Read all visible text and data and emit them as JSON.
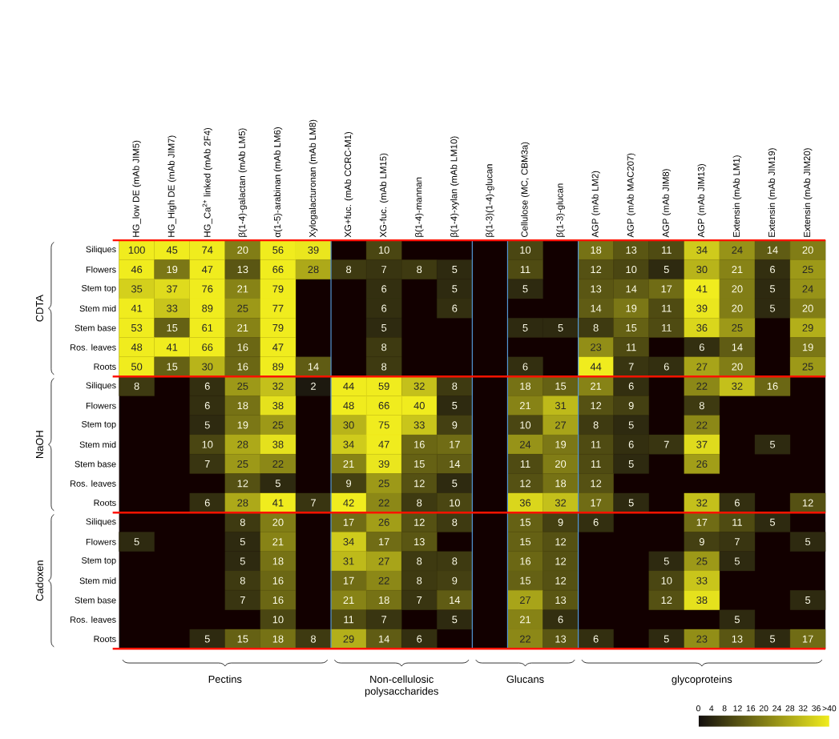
{
  "chart_data": {
    "type": "heatmap",
    "categories": [
      "HG_low DE (mAb JIM5)",
      "HG_High DE (mAb JIM7)",
      "HG_Ca$^{2+}$ linked (mAb 2F4)",
      "β(1-4)-galactan (mAb LM5)",
      "α(1-5)-arabinan (mAb LM6)",
      "Xylogalacturonan (mAb LM8)",
      "XG+fuc. (mAb CCRC-M1)",
      "XG-fuc. (mAb LM15)",
      "β(1-4)-mannan",
      "β(1-4)-xylan (mAb LM10)",
      "β(1-3)(1-4)-glucan",
      "Cellulose (MC, CBM3a)",
      "β(1-3)-glucan",
      "AGP (mAb LM2)",
      "AGP (mAb MAC207)",
      "AGP (mAb JIM8)",
      "AGP (mAb JIM13)",
      "Extensin (mAb LM1)",
      "Extensin (mAb JIM19)",
      "Extensin (mAb JIM20)"
    ],
    "y_categories": [
      "Siliques",
      "Flowers",
      "Stem top",
      "Stem mid",
      "Stem base",
      "Ros. leaves",
      "Roots",
      "Siliques",
      "Flowers",
      "Stem top",
      "Stem mid",
      "Stem base",
      "Ros. leaves",
      "Roots",
      "Siliques",
      "Flowers",
      "Stem top",
      "Stem mid",
      "Stem base",
      "Ros. leaves",
      "Roots"
    ],
    "cells": [
      [
        100,
        45,
        74,
        20,
        56,
        39,
        null,
        10,
        null,
        null,
        null,
        10,
        null,
        18,
        13,
        11,
        34,
        24,
        14,
        20
      ],
      [
        46,
        19,
        47,
        13,
        66,
        28,
        8,
        7,
        8,
        5,
        null,
        11,
        null,
        12,
        10,
        5,
        30,
        21,
        6,
        25
      ],
      [
        35,
        37,
        76,
        21,
        79,
        null,
        null,
        6,
        null,
        5,
        null,
        5,
        null,
        13,
        14,
        17,
        41,
        20,
        5,
        24
      ],
      [
        41,
        33,
        89,
        25,
        77,
        null,
        null,
        6,
        null,
        6,
        null,
        null,
        null,
        14,
        19,
        11,
        39,
        20,
        5,
        20
      ],
      [
        53,
        15,
        61,
        21,
        79,
        null,
        null,
        5,
        null,
        null,
        null,
        5,
        5,
        8,
        15,
        11,
        36,
        25,
        null,
        29
      ],
      [
        48,
        41,
        66,
        16,
        47,
        null,
        null,
        8,
        null,
        null,
        null,
        null,
        null,
        23,
        11,
        null,
        6,
        14,
        null,
        19
      ],
      [
        50,
        15,
        30,
        16,
        89,
        14,
        null,
        8,
        null,
        null,
        null,
        6,
        null,
        44,
        7,
        6,
        27,
        20,
        null,
        25
      ],
      [
        8,
        null,
        6,
        25,
        32,
        2,
        44,
        59,
        32,
        8,
        null,
        18,
        15,
        21,
        6,
        null,
        22,
        32,
        16,
        null
      ],
      [
        null,
        null,
        6,
        18,
        38,
        null,
        48,
        66,
        40,
        5,
        null,
        21,
        31,
        12,
        9,
        null,
        8,
        null,
        null,
        null
      ],
      [
        null,
        null,
        5,
        19,
        25,
        null,
        30,
        75,
        33,
        9,
        null,
        10,
        27,
        8,
        5,
        null,
        22,
        null,
        null,
        null
      ],
      [
        null,
        null,
        10,
        28,
        38,
        null,
        34,
        47,
        16,
        17,
        null,
        24,
        19,
        11,
        6,
        7,
        37,
        null,
        5,
        null
      ],
      [
        null,
        null,
        7,
        25,
        22,
        null,
        21,
        39,
        15,
        14,
        null,
        11,
        20,
        11,
        5,
        null,
        26,
        null,
        null,
        null
      ],
      [
        null,
        null,
        null,
        12,
        5,
        null,
        9,
        25,
        12,
        5,
        null,
        12,
        18,
        12,
        null,
        null,
        null,
        null,
        null,
        null
      ],
      [
        null,
        null,
        6,
        28,
        41,
        7,
        42,
        22,
        8,
        10,
        null,
        36,
        32,
        17,
        5,
        null,
        32,
        6,
        null,
        12
      ],
      [
        null,
        null,
        null,
        8,
        20,
        null,
        17,
        26,
        12,
        8,
        null,
        15,
        9,
        6,
        null,
        null,
        17,
        11,
        5,
        null
      ],
      [
        5,
        null,
        null,
        5,
        21,
        null,
        34,
        17,
        13,
        null,
        null,
        15,
        12,
        null,
        null,
        null,
        9,
        7,
        null,
        5
      ],
      [
        null,
        null,
        null,
        5,
        18,
        null,
        31,
        27,
        8,
        8,
        null,
        16,
        12,
        null,
        null,
        5,
        25,
        5,
        null,
        null
      ],
      [
        null,
        null,
        null,
        8,
        16,
        null,
        17,
        22,
        8,
        9,
        null,
        15,
        12,
        null,
        null,
        10,
        33,
        null,
        null,
        null
      ],
      [
        null,
        null,
        null,
        7,
        16,
        null,
        21,
        18,
        7,
        14,
        null,
        27,
        13,
        null,
        null,
        12,
        38,
        null,
        null,
        5
      ],
      [
        null,
        null,
        null,
        null,
        10,
        null,
        11,
        7,
        null,
        5,
        null,
        21,
        6,
        null,
        null,
        null,
        null,
        5,
        null,
        null
      ],
      [
        null,
        null,
        5,
        15,
        18,
        8,
        29,
        14,
        6,
        null,
        null,
        22,
        13,
        6,
        null,
        5,
        23,
        13,
        5,
        17
      ]
    ],
    "clim": [
      0,
      40
    ],
    "cticks": [
      0,
      4,
      8,
      12,
      16,
      20,
      24,
      28,
      32,
      36,
      {
        "value": 40,
        "label": ">40"
      }
    ],
    "data_labels": true,
    "annotations": [
      "CDTA",
      "NaOH",
      "Cadoxen",
      "Pectins",
      "Non-cellulosic polysaccharides",
      "Glucans",
      "glycoproteins"
    ]
  }
}
